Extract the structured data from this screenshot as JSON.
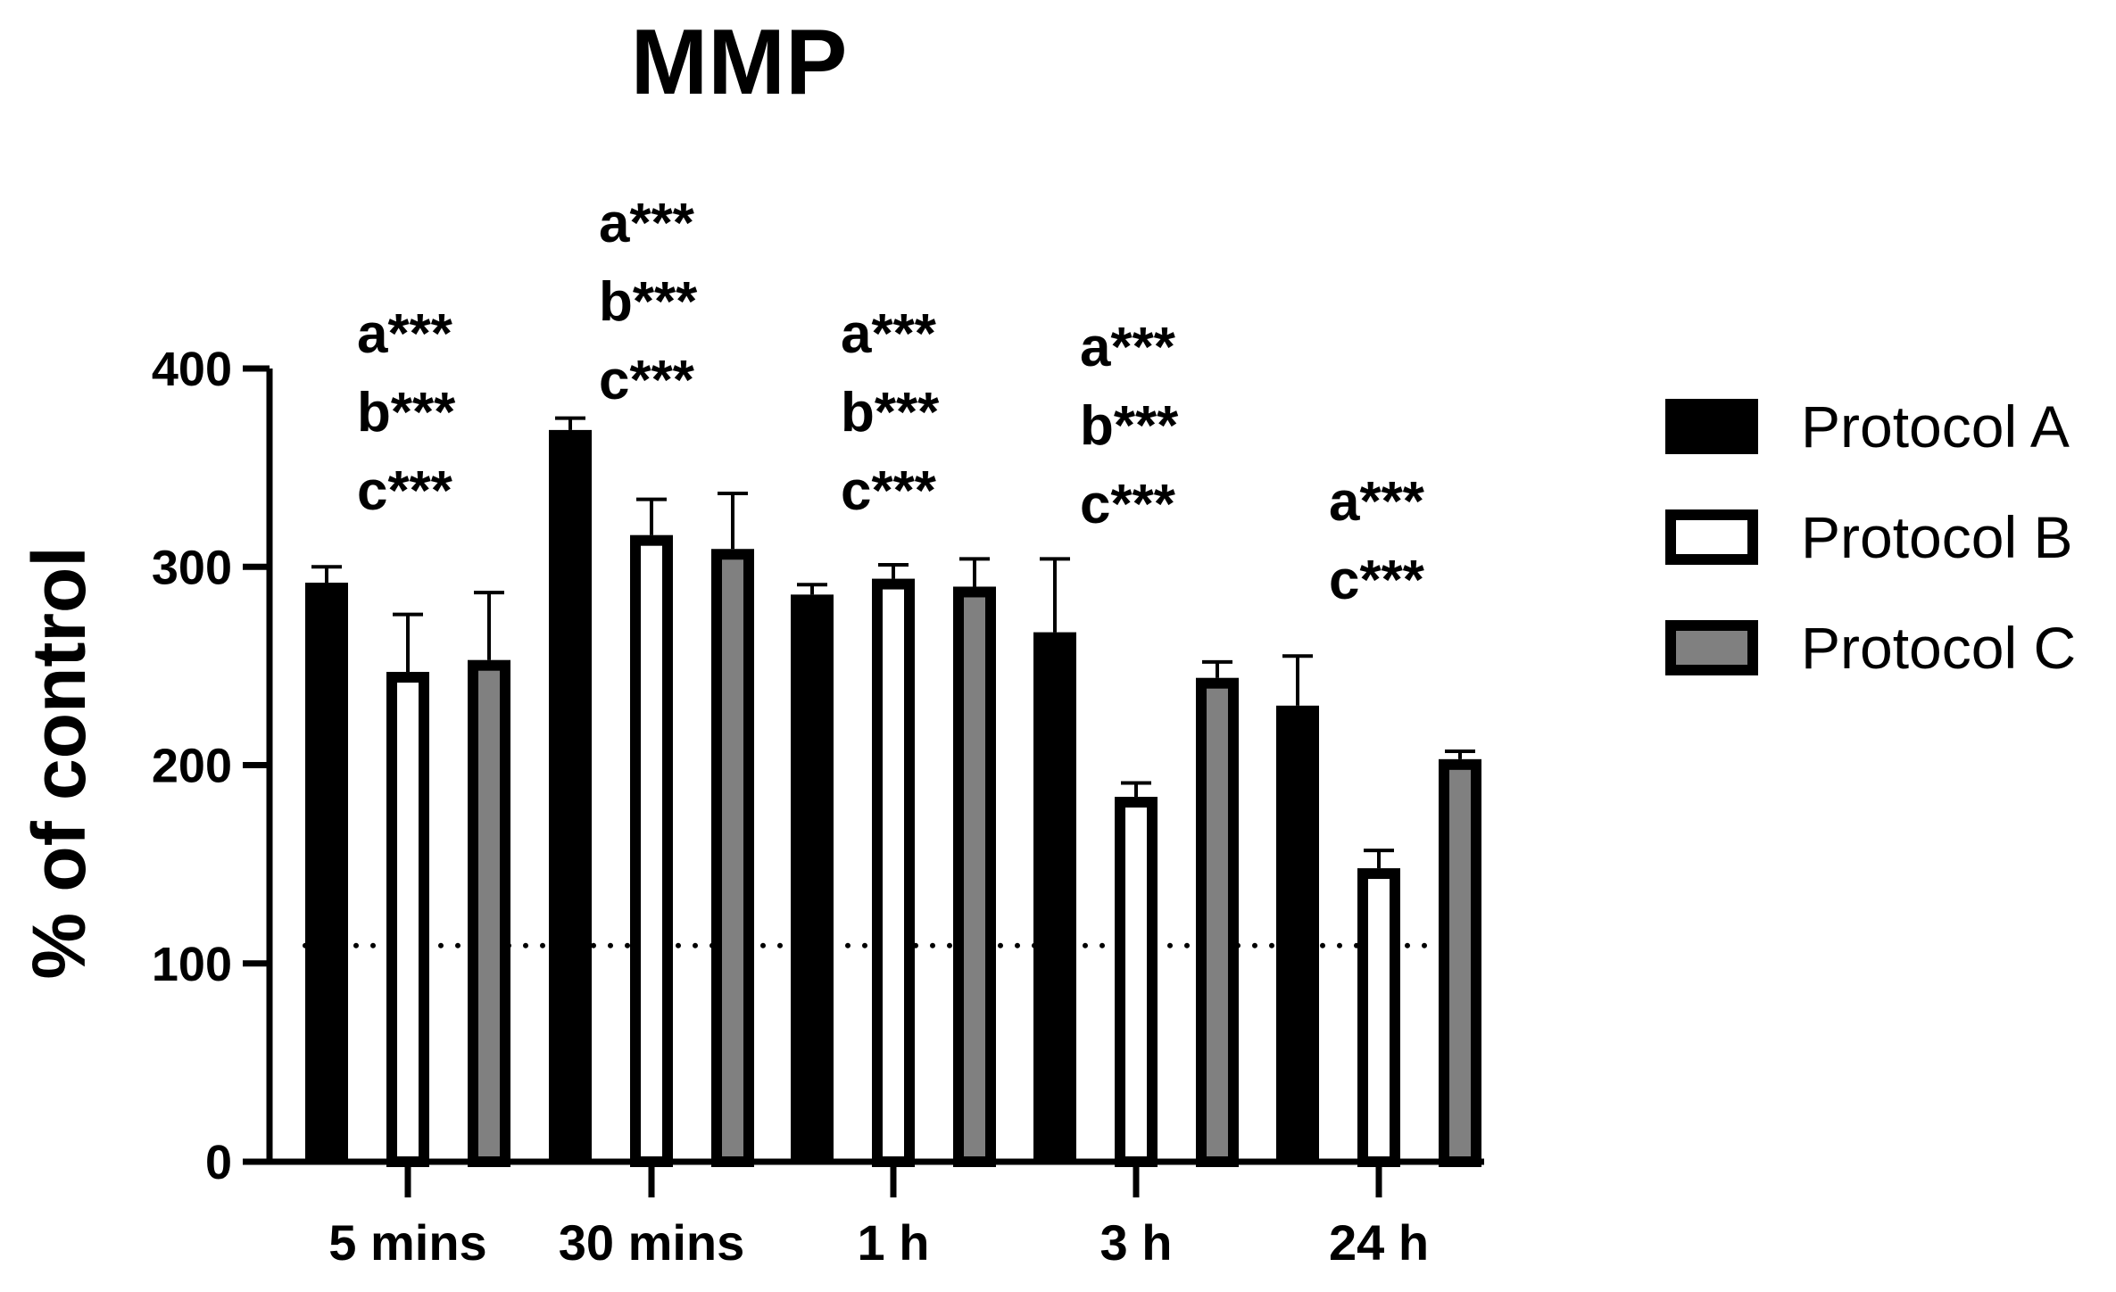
{
  "chart_data": {
    "type": "bar",
    "title": "MMP",
    "xlabel": "",
    "ylabel": "% of control",
    "ylim": [
      0,
      400
    ],
    "yticks": [
      0,
      100,
      200,
      300,
      400
    ],
    "categories": [
      "5 mins",
      "30 mins",
      "1 h",
      "3 h",
      "24 h"
    ],
    "reference_line": {
      "y": 109,
      "style": "dotted"
    },
    "series": [
      {
        "name": "Protocol A",
        "fill": "#000000",
        "values": [
          292,
          369,
          286,
          267,
          230
        ],
        "error_upper": [
          300,
          375,
          291,
          304,
          255
        ]
      },
      {
        "name": "Protocol B",
        "fill": "#ffffff",
        "values": [
          247,
          316,
          294,
          184,
          148
        ],
        "error_upper": [
          276,
          334,
          301,
          191,
          157
        ]
      },
      {
        "name": "Protocol C",
        "fill": "#808080",
        "values": [
          253,
          309,
          290,
          244,
          203
        ],
        "error_upper": [
          287,
          337,
          304,
          252,
          207
        ]
      }
    ],
    "annotations": [
      [
        "a***",
        "b***",
        "c***"
      ],
      [
        "a***",
        "b***",
        "c***"
      ],
      [
        "a***",
        "b***",
        "c***"
      ],
      [
        "a***",
        "b***",
        "c***"
      ],
      [
        "a***",
        "c***"
      ]
    ],
    "legend_position": "right",
    "grid": false
  }
}
